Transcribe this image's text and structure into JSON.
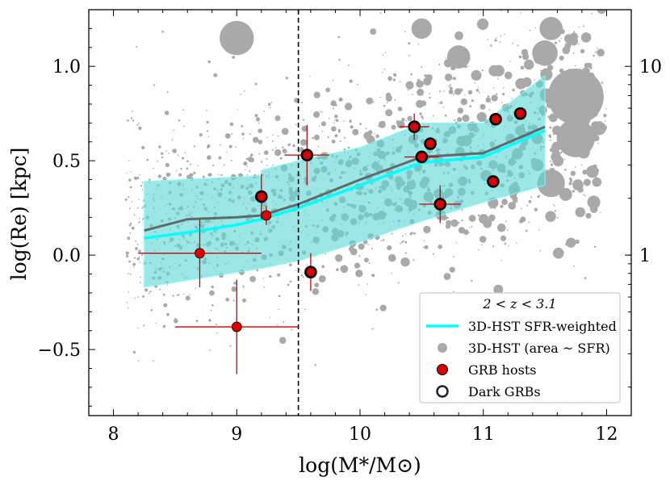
{
  "chart_data": {
    "type": "scatter",
    "title": "",
    "xlabel": "log(M*/M⊙)",
    "ylabel": "log(Re) [kpc]",
    "xlim": [
      7.8,
      12.2
    ],
    "ylim": [
      -0.85,
      1.3
    ],
    "x_ticks": [
      8,
      9,
      10,
      11,
      12
    ],
    "x_tick_labels": [
      "8",
      "9",
      "10",
      "11",
      "12"
    ],
    "y_ticks": [
      -0.5,
      0.0,
      0.5,
      1.0
    ],
    "y_tick_labels": [
      "−0.5",
      "0.0",
      "0.5",
      "1.0"
    ],
    "right_axis": {
      "label_values_kpc": [
        1,
        10
      ],
      "tick_labels": [
        "1",
        "10"
      ]
    },
    "vline_x": 9.5,
    "legend": {
      "title": "2 < z < 3.1",
      "position": "lower-right",
      "entries": [
        {
          "label": "3D-HST SFR-weighted",
          "marker": "line",
          "color": "#00ffff"
        },
        {
          "label": "3D-HST (area ~ SFR)",
          "marker": "circle",
          "color": "#a9a9a9"
        },
        {
          "label": "GRB hosts",
          "marker": "circle",
          "color": "#e00000"
        },
        {
          "label": "Dark GRBs",
          "marker": "ring",
          "color": "#1a2230"
        }
      ]
    },
    "band": {
      "x": [
        8.25,
        9.2,
        9.2,
        9.5,
        10.0,
        10.5,
        11.0,
        11.5,
        11.5
      ],
      "lower": [
        -0.17,
        -0.07,
        -0.07,
        -0.03,
        0.07,
        0.18,
        0.28,
        0.37,
        0.37
      ],
      "upper": [
        0.39,
        0.42,
        0.45,
        0.5,
        0.57,
        0.7,
        0.7,
        0.95,
        0.4
      ]
    },
    "series": [
      {
        "name": "3D-HST SFR-weighted",
        "color": "#00ffff",
        "x": [
          8.25,
          8.6,
          9.0,
          9.2,
          9.5,
          10.0,
          10.5,
          11.0,
          11.5
        ],
        "y": [
          0.09,
          0.12,
          0.16,
          0.19,
          0.25,
          0.37,
          0.49,
          0.52,
          0.66
        ]
      },
      {
        "name": "median",
        "color": "#5f6a6a",
        "x": [
          8.25,
          8.6,
          9.0,
          9.2,
          9.5,
          10.0,
          10.5,
          11.0,
          11.5
        ],
        "y": [
          0.13,
          0.19,
          0.2,
          0.21,
          0.27,
          0.4,
          0.52,
          0.54,
          0.68
        ]
      }
    ],
    "grb_hosts": [
      {
        "x": 8.7,
        "y": 0.01,
        "xerr": 0.5,
        "yerr": 0.18,
        "dark": false
      },
      {
        "x": 9.0,
        "y": -0.38,
        "xerr": 0.5,
        "yerr": 0.25,
        "dark": false
      },
      {
        "x": 9.2,
        "y": 0.31,
        "xerr": 0.0,
        "yerr": 0.12,
        "dark": true
      },
      {
        "x": 9.24,
        "y": 0.21,
        "xerr": 0.0,
        "yerr": 0.05,
        "dark": false
      },
      {
        "x": 9.57,
        "y": 0.53,
        "xerr": 0.18,
        "yerr": 0.16,
        "dark": true
      },
      {
        "x": 9.6,
        "y": -0.09,
        "xerr": 0.0,
        "yerr": 0.1,
        "dark": true
      },
      {
        "x": 10.44,
        "y": 0.68,
        "xerr": 0.12,
        "yerr": 0.07,
        "dark": true
      },
      {
        "x": 10.5,
        "y": 0.52,
        "xerr": 0.14,
        "yerr": 0.0,
        "dark": true
      },
      {
        "x": 10.57,
        "y": 0.59,
        "xerr": 0.0,
        "yerr": 0.0,
        "dark": true
      },
      {
        "x": 10.65,
        "y": 0.27,
        "xerr": 0.17,
        "yerr": 0.1,
        "dark": true
      },
      {
        "x": 11.08,
        "y": 0.39,
        "xerr": 0.0,
        "yerr": 0.0,
        "dark": true
      },
      {
        "x": 11.1,
        "y": 0.72,
        "xerr": 0.0,
        "yerr": 0.0,
        "dark": true
      },
      {
        "x": 11.3,
        "y": 0.75,
        "xerr": 0.0,
        "yerr": 0.0,
        "dark": true
      }
    ],
    "background_large_points": [
      {
        "x": 9.0,
        "y": 1.15,
        "sfr": 9
      },
      {
        "x": 11.75,
        "y": 0.84,
        "sfr": 30
      },
      {
        "x": 11.75,
        "y": 0.62,
        "sfr": 12
      },
      {
        "x": 11.55,
        "y": 0.38,
        "sfr": 5
      },
      {
        "x": 11.5,
        "y": 1.07,
        "sfr": 4
      },
      {
        "x": 11.55,
        "y": 1.2,
        "sfr": 3
      },
      {
        "x": 10.8,
        "y": 1.05,
        "sfr": 3
      },
      {
        "x": 10.5,
        "y": 1.2,
        "sfr": 2
      }
    ],
    "colors": {
      "cloud": "#a9a9a9",
      "band": "#5fd6d6",
      "band_edge": "#7ffefe",
      "grb": "#e00000",
      "grb_edge": "#000000",
      "errbar": "#cc0000",
      "vline": "#000000"
    }
  }
}
